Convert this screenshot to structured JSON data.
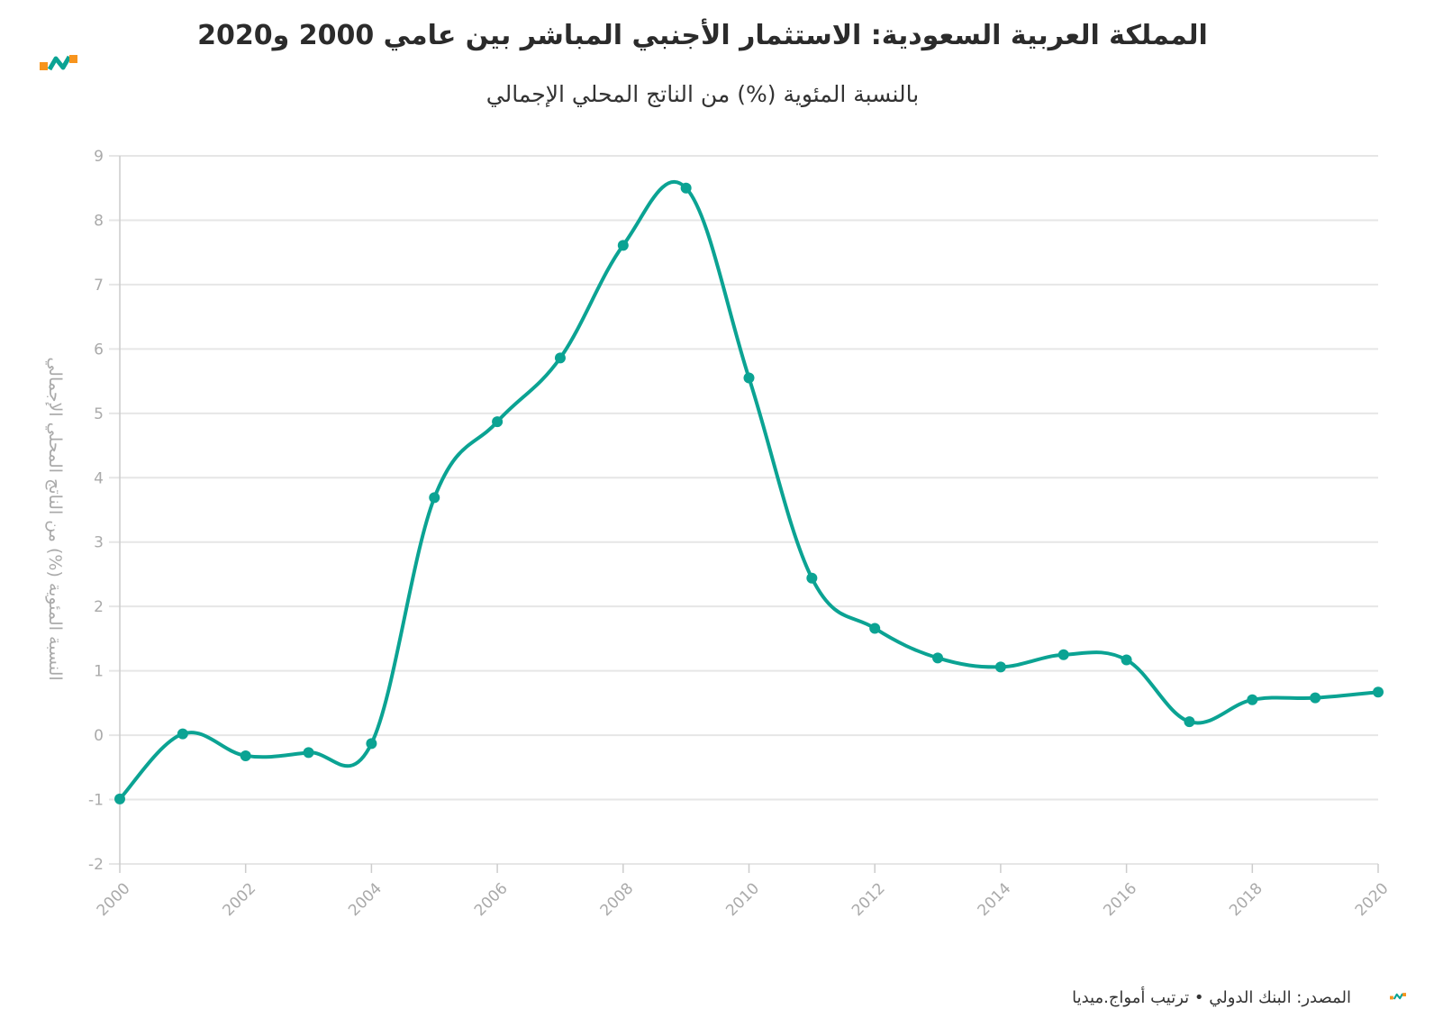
{
  "chart_data": {
    "type": "line",
    "title": "المملكة العربية السعودية: الاستثمار الأجنبي المباشر بين عامي 2000 و2020",
    "subtitle": "بالنسبة المئوية (%) من الناتج المحلي الإجمالي",
    "ylabel": "النسبة المئوية (%) من الناتج المحلي الإجمالي",
    "xlabel": "",
    "x": [
      2000,
      2001,
      2002,
      2003,
      2004,
      2005,
      2006,
      2007,
      2008,
      2009,
      2010,
      2011,
      2012,
      2013,
      2014,
      2015,
      2016,
      2017,
      2018,
      2019,
      2020
    ],
    "series": [
      {
        "values": [
          -0.99,
          0.02,
          -0.32,
          -0.27,
          -0.13,
          3.69,
          4.87,
          5.86,
          7.61,
          8.5,
          5.55,
          2.44,
          1.66,
          1.2,
          1.06,
          1.25,
          1.17,
          0.21,
          0.55,
          0.58,
          0.67
        ]
      }
    ],
    "xlim": [
      2000,
      2020
    ],
    "ylim": [
      -2,
      9
    ],
    "x_ticks": [
      "2000",
      "2002",
      "2004",
      "2006",
      "2008",
      "2010",
      "2012",
      "2014",
      "2016",
      "2018",
      "2020"
    ],
    "y_ticks": [
      "-2",
      "-1",
      "0",
      "1",
      "2",
      "3",
      "4",
      "5",
      "6",
      "7",
      "8",
      "9"
    ],
    "grid": true,
    "legend": "none",
    "line_color": "#0ba393",
    "grid_color": "#e6e6e6",
    "tick_color": "#aaaaaa"
  },
  "footer": {
    "source": "المصدر: البنك الدولي • ترتيب أمواج.ميديا"
  },
  "brand": {
    "orange": "#f7941d",
    "teal": "#0ba393",
    "logo_icon": "amwaj-logo-icon"
  }
}
